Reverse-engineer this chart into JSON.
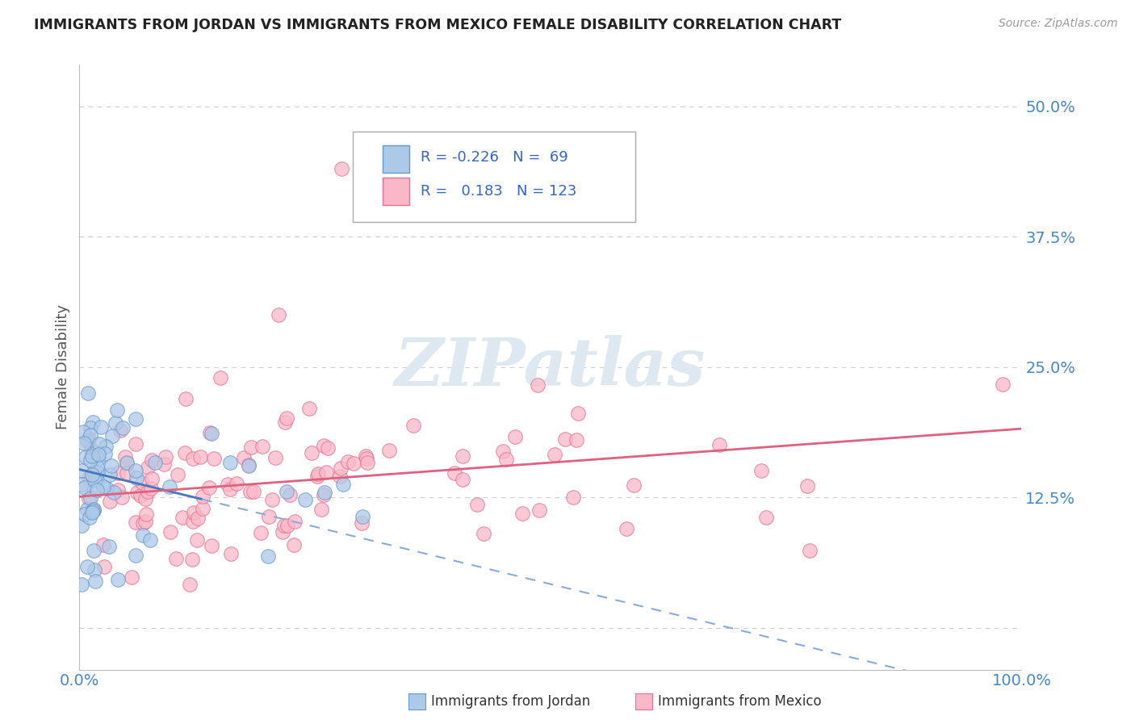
{
  "title": "IMMIGRANTS FROM JORDAN VS IMMIGRANTS FROM MEXICO FEMALE DISABILITY CORRELATION CHART",
  "source": "Source: ZipAtlas.com",
  "ylabel": "Female Disability",
  "xlim": [
    0.0,
    1.0
  ],
  "ylim": [
    -0.04,
    0.54
  ],
  "yticks": [
    0.0,
    0.125,
    0.25,
    0.375,
    0.5
  ],
  "ytick_labels": [
    "",
    "12.5%",
    "25.0%",
    "37.5%",
    "50.0%"
  ],
  "xtick_labels": [
    "0.0%",
    "100.0%"
  ],
  "legend_jordan_r": "-0.226",
  "legend_jordan_n": "69",
  "legend_mexico_r": "0.183",
  "legend_mexico_n": "123",
  "color_jordan_fill": "#adc9e8",
  "color_jordan_edge": "#6699cc",
  "color_mexico_fill": "#f9b8c8",
  "color_mexico_edge": "#e87090",
  "color_jordan_line_solid": "#4477bb",
  "color_jordan_line_dash": "#88aadd",
  "color_mexico_line": "#e06080",
  "watermark_color": "#dde8f0",
  "legend_text_color": "#3366cc",
  "tick_color": "#4488cc",
  "grid_color": "#cccccc",
  "ylabel_color": "#555555",
  "title_color": "#222222",
  "source_color": "#999999"
}
